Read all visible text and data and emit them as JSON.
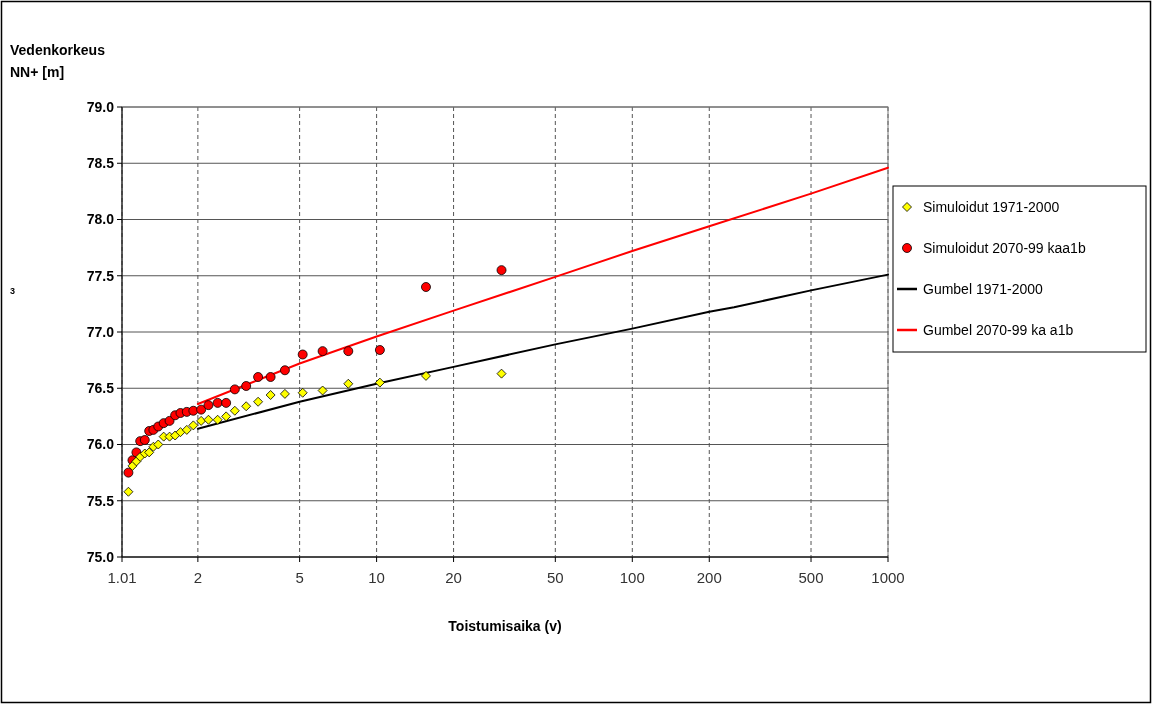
{
  "chart_data": {
    "type": "scatter",
    "xlabel": "Toistumisaika (v)",
    "ylabel": "Vedenkorkeus\nNN+ [m]",
    "annotations": [
      "3"
    ],
    "xlim": [
      1.01,
      1000
    ],
    "xticks": [
      1.01,
      2,
      5,
      10,
      20,
      50,
      100,
      200,
      500,
      1000
    ],
    "ylim": [
      75,
      79
    ],
    "yticks": [
      {
        "value": 75,
        "label": "75.0"
      },
      {
        "value": 75.5,
        "label": "75.5"
      },
      {
        "value": 76,
        "label": "76.0"
      },
      {
        "value": 76.5,
        "label": "76.5"
      },
      {
        "value": 77,
        "label": "77.0"
      },
      {
        "value": 77.5,
        "label": "77.5"
      },
      {
        "value": 78,
        "label": "78.0"
      },
      {
        "value": 78.5,
        "label": "78.5"
      },
      {
        "value": 79,
        "label": "79.0"
      }
    ],
    "grid": true,
    "legend": "right",
    "log": "x",
    "series": [
      {
        "name": "Simuloidut 1971-2000",
        "marker": "diamond",
        "color": "#ffff00",
        "x": [
          1.07,
          1.11,
          1.15,
          1.19,
          1.24,
          1.29,
          1.34,
          1.4,
          1.47,
          1.55,
          1.63,
          1.71,
          1.81,
          1.92,
          2.06,
          2.2,
          2.39,
          2.58,
          2.79,
          3.09,
          3.44,
          3.85,
          4.38,
          5.14,
          6.15,
          7.75,
          10.3,
          15.6,
          30.8
        ],
        "values": [
          75.58,
          75.81,
          75.85,
          75.89,
          75.92,
          75.93,
          75.98,
          76.0,
          76.07,
          76.07,
          76.08,
          76.11,
          76.13,
          76.17,
          76.21,
          76.22,
          76.22,
          76.25,
          76.3,
          76.34,
          76.38,
          76.44,
          76.45,
          76.46,
          76.48,
          76.54,
          76.55,
          76.61,
          76.63
        ]
      },
      {
        "name": "Simuloidut 2070-99 kaa1b",
        "marker": "circle",
        "color": "#ff0000",
        "x": [
          1.07,
          1.11,
          1.15,
          1.19,
          1.24,
          1.29,
          1.34,
          1.4,
          1.47,
          1.55,
          1.63,
          1.71,
          1.81,
          1.92,
          2.06,
          2.2,
          2.39,
          2.58,
          2.79,
          3.09,
          3.44,
          3.85,
          4.38,
          5.14,
          6.15,
          7.75,
          10.3,
          15.6,
          30.8
        ],
        "values": [
          75.75,
          75.86,
          75.93,
          76.03,
          76.04,
          76.12,
          76.13,
          76.16,
          76.19,
          76.21,
          76.26,
          76.28,
          76.29,
          76.3,
          76.31,
          76.35,
          76.37,
          76.37,
          76.49,
          76.52,
          76.6,
          76.6,
          76.66,
          76.8,
          76.83,
          76.83,
          76.84,
          77.4,
          77.55
        ]
      },
      {
        "name": "Gumbel 1971-2000",
        "type": "line",
        "marker": "none",
        "color": "#000000",
        "x": [
          2,
          5,
          10,
          20,
          50,
          100,
          200,
          250,
          500,
          1000
        ],
        "values": [
          76.14,
          76.38,
          76.54,
          76.69,
          76.89,
          77.03,
          77.18,
          77.22,
          77.37,
          77.51
        ]
      },
      {
        "name": "Gumbel 2070-99 ka a1b",
        "type": "line",
        "marker": "none",
        "color": "#ff0000",
        "x": [
          2,
          5,
          10,
          20,
          50,
          100,
          200,
          500,
          1000
        ],
        "values": [
          76.36,
          76.72,
          76.96,
          77.19,
          77.49,
          77.72,
          77.94,
          78.23,
          78.46
        ]
      }
    ]
  }
}
